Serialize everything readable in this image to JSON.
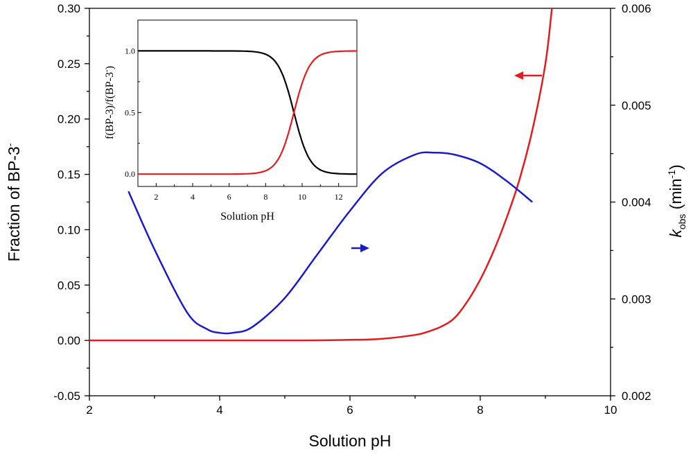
{
  "chart_data": [
    {
      "type": "line",
      "title": "",
      "xlabel": "Solution pH",
      "ylabel_left": "Fraction of BP-3",
      "ylabel_left_superscript": "-",
      "ylabel_right_main": "k",
      "ylabel_right_subscript": "obs",
      "ylabel_right_unit": "(min",
      "ylabel_right_unit_sup": "-1",
      "ylabel_right_unit_close": ")",
      "xlim": [
        2,
        10
      ],
      "ylim_left": [
        -0.05,
        0.3
      ],
      "ylim_right": [
        0.002,
        0.006
      ],
      "xticks": [
        "2",
        "4",
        "6",
        "8",
        "10"
      ],
      "yticks_left": [
        "-0.05",
        "0.00",
        "0.05",
        "0.10",
        "0.15",
        "0.20",
        "0.25",
        "0.30"
      ],
      "yticks_right": [
        "0.002",
        "0.003",
        "0.004",
        "0.005",
        "0.006"
      ],
      "grid": false,
      "series": [
        {
          "axis": "left",
          "color": "#e41a1c",
          "x": [
            2.0,
            5.0,
            6.0,
            6.5,
            7.0,
            7.2,
            7.4,
            7.6,
            7.8,
            8.0,
            8.2,
            8.4,
            8.6,
            8.8,
            9.0,
            9.1
          ],
          "y": [
            0.0,
            0.0,
            0.0005,
            0.0015,
            0.005,
            0.008,
            0.0125,
            0.02,
            0.035,
            0.055,
            0.08,
            0.11,
            0.145,
            0.19,
            0.25,
            0.3
          ]
        },
        {
          "axis": "right",
          "color": "#1a1acd",
          "x": [
            2.6,
            3.0,
            3.5,
            3.8,
            4.0,
            4.2,
            4.5,
            5.0,
            5.5,
            6.0,
            6.5,
            7.0,
            7.3,
            7.6,
            8.0,
            8.4,
            8.8
          ],
          "y": [
            0.00411,
            0.00351,
            0.00286,
            0.00269,
            0.00265,
            0.00265,
            0.00271,
            0.00301,
            0.00346,
            0.00391,
            0.0043,
            0.00449,
            0.00451,
            0.00449,
            0.0044,
            0.00422,
            0.004
          ]
        }
      ]
    },
    {
      "type": "line",
      "title": "",
      "xlabel": "Solution pH",
      "ylabel": "f(BP-3)/f(BP-3",
      "ylabel_sup": "-",
      "ylabel_close": ")",
      "xlim": [
        1,
        13
      ],
      "ylim": [
        -0.1,
        1.25
      ],
      "xticks": [
        "2",
        "4",
        "6",
        "8",
        "10",
        "12"
      ],
      "yticks": [
        "0.0",
        "0.5",
        "1.0"
      ],
      "grid": false,
      "pKa": 9.55,
      "series": [
        {
          "name_ref": "neutral",
          "color": "#000000",
          "form": "neutral"
        },
        {
          "name_ref": "anion",
          "color": "#e41a1c",
          "form": "anion"
        }
      ]
    }
  ]
}
